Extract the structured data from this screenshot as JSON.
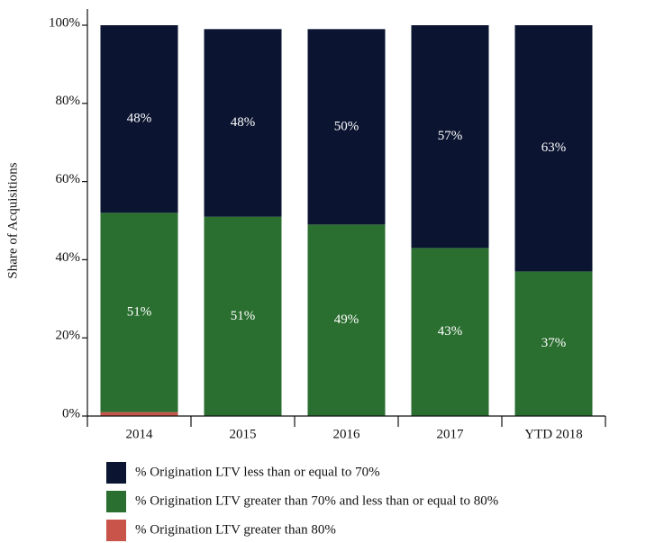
{
  "chart_data": {
    "type": "stacked_bar",
    "y_label": "Share of Acquisitions",
    "categories": [
      "2014",
      "2015",
      "2016",
      "2017",
      "YTD 2018"
    ],
    "series": [
      {
        "name": "% Origination LTV greater than 80%",
        "color": "#c9544a",
        "values": [
          1,
          0,
          0,
          0,
          0
        ]
      },
      {
        "name": "% Origination LTV greater than 70% and less than or equal to 80%",
        "color": "#2a6e30",
        "values": [
          51,
          51,
          49,
          43,
          37
        ],
        "value_labels": [
          "51%",
          "51%",
          "49%",
          "43%",
          "37%"
        ]
      },
      {
        "name": "% Origination LTV less than or equal to 70%",
        "color": "#0b1431",
        "values": [
          48,
          48,
          50,
          57,
          63
        ],
        "value_labels": [
          "48%",
          "48%",
          "50%",
          "57%",
          "63%"
        ]
      }
    ],
    "ylim": [
      0,
      100
    ],
    "yticks": [
      {
        "value": 0,
        "label": "0%"
      },
      {
        "value": 20,
        "label": "20%"
      },
      {
        "value": 40,
        "label": "40%"
      },
      {
        "value": 60,
        "label": "60%"
      },
      {
        "value": 80,
        "label": "80%"
      },
      {
        "value": 100,
        "label": "100%"
      }
    ]
  }
}
